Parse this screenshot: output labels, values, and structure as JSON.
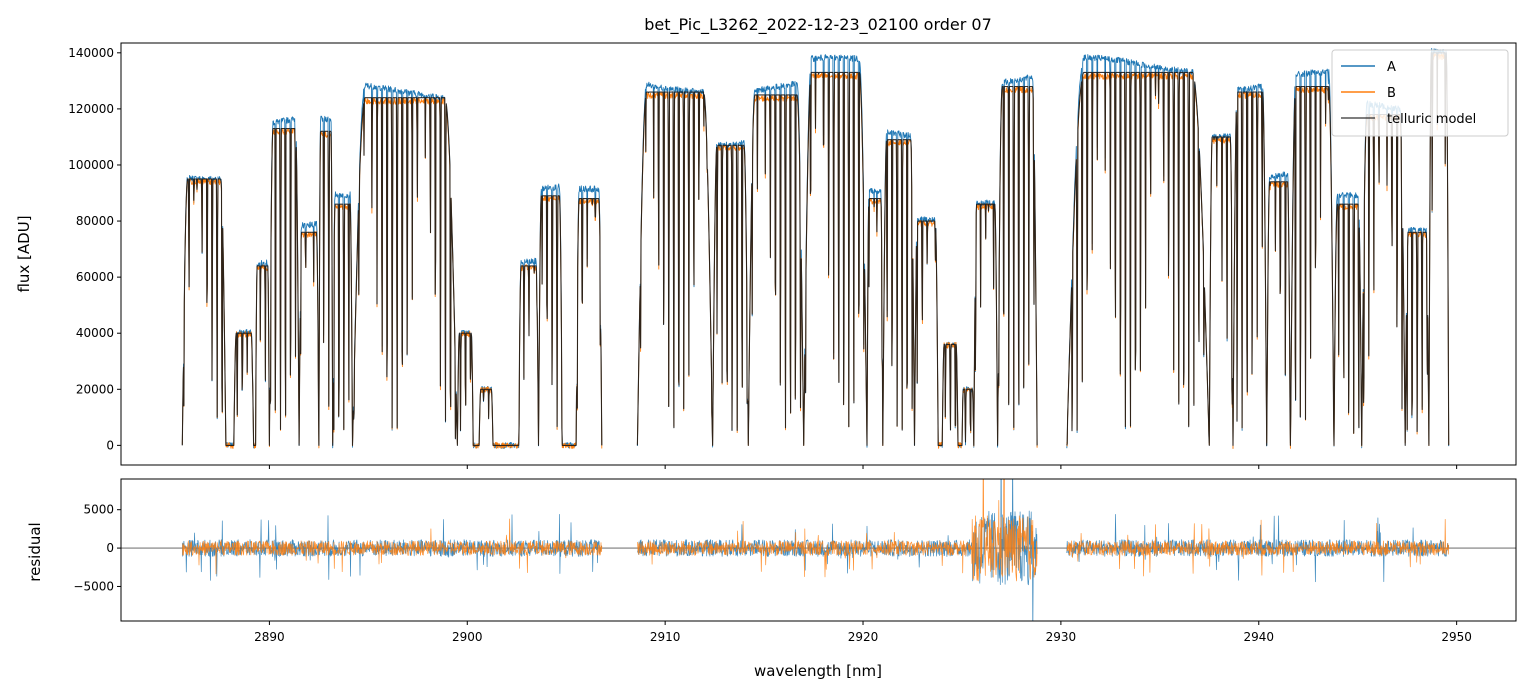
{
  "chart_data": [
    {
      "type": "line",
      "panel": "flux",
      "title": "bet_Pic_L3262_2022-12-23_02100  order 07",
      "xlabel": "",
      "ylabel": "flux [ADU]",
      "xlim": [
        2882.5,
        2953
      ],
      "ylim": [
        -7000,
        143500
      ],
      "yticks": [
        0,
        20000,
        40000,
        60000,
        80000,
        100000,
        120000,
        140000
      ],
      "ytick_labels": [
        "0",
        "20000",
        "40000",
        "60000",
        "80000",
        "100000",
        "120000",
        "140000"
      ],
      "x_gaps": [
        [
          2906.8,
          2908.6
        ],
        [
          2928.8,
          2930.3
        ]
      ],
      "legend": {
        "placement": "top-right",
        "entries": [
          "A",
          "B",
          "telluric model"
        ]
      },
      "grid": false,
      "series": [
        {
          "name": "A",
          "color": "#1f77b4"
        },
        {
          "name": "B",
          "color": "#ff7f0e"
        },
        {
          "name": "telluric model",
          "color": "#1a1a1a"
        }
      ],
      "continuum_windows": [
        {
          "x": [
            2885.6,
            2887.8
          ],
          "peak": 95000
        },
        {
          "x": [
            2888.2,
            2889.2
          ],
          "peak": 40000
        },
        {
          "x": [
            2889.3,
            2890.0
          ],
          "peak": 64000
        },
        {
          "x": [
            2890.0,
            2891.5
          ],
          "peak": 113000
        },
        {
          "x": [
            2891.5,
            2892.5
          ],
          "peak": 76000
        },
        {
          "x": [
            2892.5,
            2893.2
          ],
          "peak": 112000
        },
        {
          "x": [
            2893.2,
            2894.2
          ],
          "peak": 86000
        },
        {
          "x": [
            2894.2,
            2899.5
          ],
          "peak": 124000
        },
        {
          "x": [
            2899.5,
            2900.3
          ],
          "peak": 40000
        },
        {
          "x": [
            2900.6,
            2901.3
          ],
          "peak": 20000
        },
        {
          "x": [
            2902.6,
            2903.6
          ],
          "peak": 64000
        },
        {
          "x": [
            2903.6,
            2904.8
          ],
          "peak": 89000
        },
        {
          "x": [
            2905.5,
            2906.8
          ],
          "peak": 88000
        },
        {
          "x": [
            2908.6,
            2912.4
          ],
          "peak": 126000
        },
        {
          "x": [
            2912.4,
            2914.2
          ],
          "peak": 107000
        },
        {
          "x": [
            2914.2,
            2917.0
          ],
          "peak": 125000
        },
        {
          "x": [
            2917.0,
            2920.2
          ],
          "peak": 133000
        },
        {
          "x": [
            2920.2,
            2921.0
          ],
          "peak": 88000
        },
        {
          "x": [
            2921.0,
            2922.6
          ],
          "peak": 109000
        },
        {
          "x": [
            2922.6,
            2923.8
          ],
          "peak": 80000
        },
        {
          "x": [
            2924.0,
            2924.8
          ],
          "peak": 36000
        },
        {
          "x": [
            2925.0,
            2925.6
          ],
          "peak": 20000
        },
        {
          "x": [
            2925.6,
            2926.8
          ],
          "peak": 86000
        },
        {
          "x": [
            2926.8,
            2928.8
          ],
          "peak": 128000
        },
        {
          "x": [
            2930.3,
            2937.5
          ],
          "peak": 133000
        },
        {
          "x": [
            2937.5,
            2938.7
          ],
          "peak": 110000
        },
        {
          "x": [
            2938.7,
            2940.4
          ],
          "peak": 126000
        },
        {
          "x": [
            2940.4,
            2941.6
          ],
          "peak": 94000
        },
        {
          "x": [
            2941.6,
            2943.8
          ],
          "peak": 128000
        },
        {
          "x": [
            2943.8,
            2945.2
          ],
          "peak": 86000
        },
        {
          "x": [
            2945.2,
            2947.4
          ],
          "peak": 118000
        },
        {
          "x": [
            2947.4,
            2948.6
          ],
          "peak": 76000
        },
        {
          "x": [
            2948.6,
            2949.6
          ],
          "peak": 140000
        }
      ]
    },
    {
      "type": "line",
      "panel": "residual",
      "title": "",
      "xlabel": "wavelength [nm]",
      "ylabel": "residual",
      "xlim": [
        2882.5,
        2953
      ],
      "ylim": [
        -9500,
        9000
      ],
      "xticks": [
        2890,
        2900,
        2910,
        2920,
        2930,
        2940,
        2950
      ],
      "xtick_labels": [
        "2890",
        "2900",
        "2910",
        "2920",
        "2930",
        "2940",
        "2950"
      ],
      "yticks": [
        -5000,
        0,
        5000
      ],
      "ytick_labels": [
        "−5000",
        "0",
        "5000"
      ],
      "zero_line": true,
      "noise_amplitude": {
        "A": 1100,
        "B": 950
      },
      "series": [
        {
          "name": "A",
          "color": "#1f77b4"
        },
        {
          "name": "B",
          "color": "#ff7f0e"
        }
      ]
    }
  ]
}
